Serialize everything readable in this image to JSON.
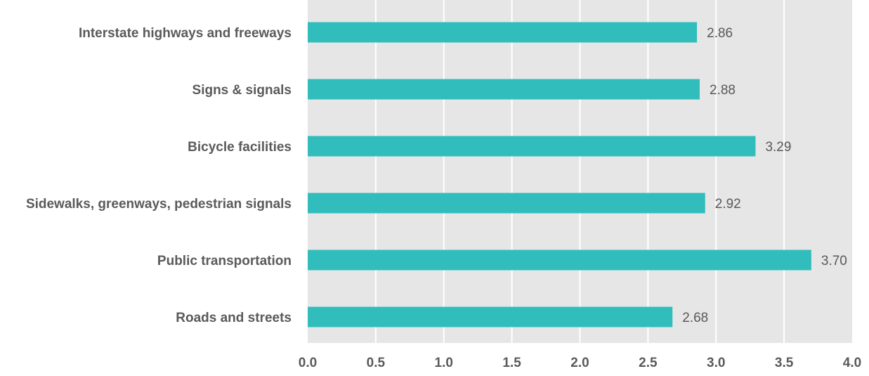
{
  "chart_data": {
    "type": "bar",
    "orientation": "horizontal",
    "categories": [
      "Interstate highways and freeways",
      "Signs & signals",
      "Bicycle facilities",
      "Sidewalks, greenways, pedestrian signals",
      "Public transportation",
      "Roads and streets"
    ],
    "values": [
      2.86,
      2.88,
      3.29,
      2.92,
      3.7,
      2.68
    ],
    "value_labels": [
      "2.86",
      "2.88",
      "3.29",
      "2.92",
      "3.70",
      "2.68"
    ],
    "xlim": [
      0,
      4
    ],
    "x_ticks": [
      "0.0",
      "0.5",
      "1.0",
      "1.5",
      "2.0",
      "2.5",
      "3.0",
      "3.5",
      "4.0"
    ],
    "title": "",
    "xlabel": "",
    "ylabel": "",
    "grid": true,
    "legend": "none",
    "colors": {
      "bar": "#32bdbd",
      "plot_background": "#e6e6e6",
      "gridline": "#ffffff",
      "text": "#5a5a5a"
    }
  }
}
